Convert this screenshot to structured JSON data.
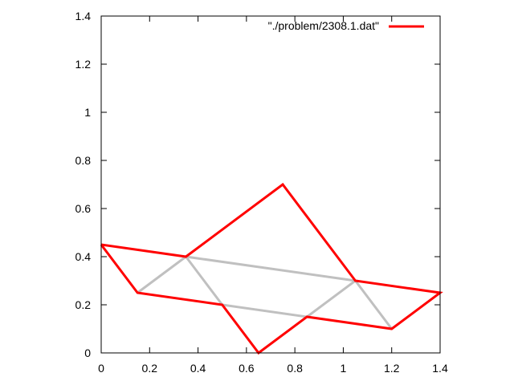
{
  "chart_data": {
    "type": "line",
    "title": "",
    "xlabel": "",
    "ylabel": "",
    "xlim": [
      0,
      1.4
    ],
    "ylim": [
      0,
      1.4
    ],
    "xticks": [
      0,
      0.2,
      0.4,
      0.6,
      0.8,
      1,
      1.2,
      1.4
    ],
    "yticks": [
      0,
      0.2,
      0.4,
      0.6,
      0.8,
      1,
      1.2,
      1.4
    ],
    "xtick_labels": [
      "0",
      "0.2",
      "0.4",
      "0.6",
      "0.8",
      "1",
      "1.2",
      "1.4"
    ],
    "ytick_labels": [
      "0",
      "0.2",
      "0.4",
      "0.6",
      "0.8",
      "1",
      "1.2",
      "1.4"
    ],
    "grid": false,
    "legend_position": "top-right",
    "series": [
      {
        "name": "\"./problem/2308.1.dat\"",
        "color": "#ff0000",
        "segments": [
          [
            [
              0,
              0.45
            ],
            [
              0.15,
              0.25
            ],
            [
              0.5,
              0.2
            ],
            [
              0.65,
              0
            ],
            [
              0.85,
              0.15
            ],
            [
              1.2,
              0.1
            ],
            [
              1.4,
              0.25
            ],
            [
              1.05,
              0.3
            ],
            [
              0.75,
              0.7
            ],
            [
              0.35,
              0.4
            ],
            [
              0,
              0.45
            ]
          ]
        ]
      },
      {
        "name": "",
        "color": "#c0c0c0",
        "segments": [
          [
            [
              0.15,
              0.25
            ],
            [
              0.35,
              0.4
            ],
            [
              1.05,
              0.3
            ],
            [
              0.85,
              0.15
            ],
            [
              0.5,
              0.2
            ],
            [
              0.35,
              0.4
            ]
          ],
          [
            [
              1.05,
              0.3
            ],
            [
              1.2,
              0.1
            ]
          ]
        ]
      }
    ]
  }
}
